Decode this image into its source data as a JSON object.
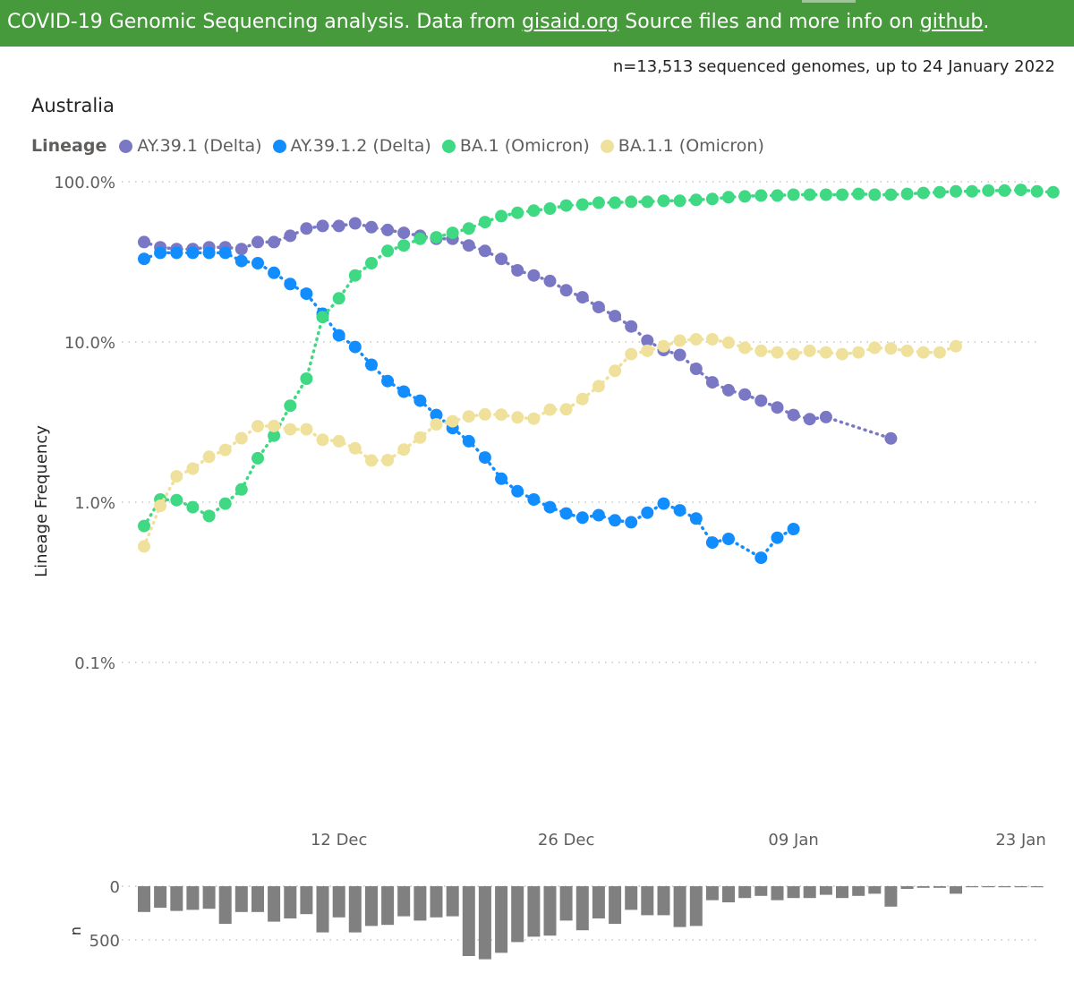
{
  "header": {
    "prefix": "COVID-19 Genomic Sequencing analysis. Data from ",
    "gisaid_link": "gisaid.org",
    "middle": " Source files and more info on ",
    "github_link": "github",
    "suffix": "."
  },
  "sample_count": "n=13,513 sequenced genomes, up to 24 January 2022",
  "region": "Australia",
  "legend_title": "Lineage",
  "chart_data": [
    {
      "type": "line",
      "yscale": "log",
      "ylabel": "Lineage Frequency",
      "xlabel": "",
      "y_ticks": [
        {
          "value": 1.0,
          "label": "100.0%"
        },
        {
          "value": 0.1,
          "label": "10.0%"
        },
        {
          "value": 0.01,
          "label": "1.0%"
        },
        {
          "value": 0.001,
          "label": "0.1%"
        }
      ],
      "x_ticks": [
        {
          "value": "2021-12-12",
          "label": "12 Dec"
        },
        {
          "value": "2021-12-26",
          "label": "26 Dec"
        },
        {
          "value": "2022-01-09",
          "label": "09 Jan"
        },
        {
          "value": "2022-01-23",
          "label": "23 Jan"
        }
      ],
      "grid": true,
      "legend_position": "top-left",
      "series": [
        {
          "name": "AY.39.1 (Delta)",
          "color": "#7a78c4",
          "points": [
            [
              "2021-11-30",
              0.42
            ],
            [
              "2021-12-01",
              0.39
            ],
            [
              "2021-12-02",
              0.38
            ],
            [
              "2021-12-03",
              0.38
            ],
            [
              "2021-12-04",
              0.39
            ],
            [
              "2021-12-05",
              0.39
            ],
            [
              "2021-12-06",
              0.38
            ],
            [
              "2021-12-07",
              0.42
            ],
            [
              "2021-12-08",
              0.42
            ],
            [
              "2021-12-09",
              0.46
            ],
            [
              "2021-12-10",
              0.51
            ],
            [
              "2021-12-11",
              0.53
            ],
            [
              "2021-12-12",
              0.53
            ],
            [
              "2021-12-13",
              0.55
            ],
            [
              "2021-12-14",
              0.52
            ],
            [
              "2021-12-15",
              0.5
            ],
            [
              "2021-12-16",
              0.48
            ],
            [
              "2021-12-17",
              0.46
            ],
            [
              "2021-12-18",
              0.44
            ],
            [
              "2021-12-19",
              0.44
            ],
            [
              "2021-12-20",
              0.4
            ],
            [
              "2021-12-21",
              0.37
            ],
            [
              "2021-12-22",
              0.33
            ],
            [
              "2021-12-23",
              0.28
            ],
            [
              "2021-12-24",
              0.26
            ],
            [
              "2021-12-25",
              0.24
            ],
            [
              "2021-12-26",
              0.21
            ],
            [
              "2021-12-27",
              0.19
            ],
            [
              "2021-12-28",
              0.165
            ],
            [
              "2021-12-29",
              0.145
            ],
            [
              "2021-12-30",
              0.125
            ],
            [
              "2021-12-31",
              0.102
            ],
            [
              "2022-01-01",
              0.089
            ],
            [
              "2022-01-02",
              0.083
            ],
            [
              "2022-01-03",
              0.068
            ],
            [
              "2022-01-04",
              0.056
            ],
            [
              "2022-01-05",
              0.05
            ],
            [
              "2022-01-06",
              0.047
            ],
            [
              "2022-01-07",
              0.043
            ],
            [
              "2022-01-08",
              0.039
            ],
            [
              "2022-01-09",
              0.035
            ],
            [
              "2022-01-10",
              0.033
            ],
            [
              "2022-01-11",
              0.034
            ],
            [
              "2022-01-15",
              0.025
            ]
          ]
        },
        {
          "name": "AY.39.1.2 (Delta)",
          "color": "#118dff",
          "points": [
            [
              "2021-11-30",
              0.33
            ],
            [
              "2021-12-01",
              0.36
            ],
            [
              "2021-12-02",
              0.36
            ],
            [
              "2021-12-03",
              0.36
            ],
            [
              "2021-12-04",
              0.36
            ],
            [
              "2021-12-05",
              0.36
            ],
            [
              "2021-12-06",
              0.32
            ],
            [
              "2021-12-07",
              0.31
            ],
            [
              "2021-12-08",
              0.27
            ],
            [
              "2021-12-09",
              0.23
            ],
            [
              "2021-12-10",
              0.2
            ],
            [
              "2021-12-11",
              0.15
            ],
            [
              "2021-12-12",
              0.11
            ],
            [
              "2021-12-13",
              0.093
            ],
            [
              "2021-12-14",
              0.072
            ],
            [
              "2021-12-15",
              0.057
            ],
            [
              "2021-12-16",
              0.049
            ],
            [
              "2021-12-17",
              0.043
            ],
            [
              "2021-12-18",
              0.035
            ],
            [
              "2021-12-19",
              0.029
            ],
            [
              "2021-12-20",
              0.024
            ],
            [
              "2021-12-21",
              0.019
            ],
            [
              "2021-12-22",
              0.014
            ],
            [
              "2021-12-23",
              0.0117
            ],
            [
              "2021-12-24",
              0.0104
            ],
            [
              "2021-12-25",
              0.0093
            ],
            [
              "2021-12-26",
              0.0085
            ],
            [
              "2021-12-27",
              0.008
            ],
            [
              "2021-12-28",
              0.0083
            ],
            [
              "2021-12-29",
              0.0077
            ],
            [
              "2021-12-30",
              0.0075
            ],
            [
              "2021-12-31",
              0.0086
            ],
            [
              "2022-01-01",
              0.0098
            ],
            [
              "2022-01-02",
              0.0089
            ],
            [
              "2022-01-03",
              0.0079
            ],
            [
              "2022-01-04",
              0.0056
            ],
            [
              "2022-01-05",
              0.0059
            ],
            [
              "2022-01-07",
              0.0045
            ],
            [
              "2022-01-08",
              0.006
            ],
            [
              "2022-01-09",
              0.0068
            ]
          ]
        },
        {
          "name": "BA.1 (Omicron)",
          "color": "#3fd883",
          "points": [
            [
              "2021-11-30",
              0.0071
            ],
            [
              "2021-12-01",
              0.0104
            ],
            [
              "2021-12-02",
              0.0103
            ],
            [
              "2021-12-03",
              0.0093
            ],
            [
              "2021-12-04",
              0.0082
            ],
            [
              "2021-12-05",
              0.0098
            ],
            [
              "2021-12-06",
              0.012
            ],
            [
              "2021-12-07",
              0.0188
            ],
            [
              "2021-12-08",
              0.026
            ],
            [
              "2021-12-09",
              0.04
            ],
            [
              "2021-12-10",
              0.059
            ],
            [
              "2021-12-11",
              0.143
            ],
            [
              "2021-12-12",
              0.187
            ],
            [
              "2021-12-13",
              0.26
            ],
            [
              "2021-12-14",
              0.31
            ],
            [
              "2021-12-15",
              0.37
            ],
            [
              "2021-12-16",
              0.4
            ],
            [
              "2021-12-17",
              0.44
            ],
            [
              "2021-12-18",
              0.45
            ],
            [
              "2021-12-19",
              0.48
            ],
            [
              "2021-12-20",
              0.51
            ],
            [
              "2021-12-21",
              0.56
            ],
            [
              "2021-12-22",
              0.61
            ],
            [
              "2021-12-23",
              0.64
            ],
            [
              "2021-12-24",
              0.66
            ],
            [
              "2021-12-25",
              0.68
            ],
            [
              "2021-12-26",
              0.71
            ],
            [
              "2021-12-27",
              0.72
            ],
            [
              "2021-12-28",
              0.74
            ],
            [
              "2021-12-29",
              0.74
            ],
            [
              "2021-12-30",
              0.75
            ],
            [
              "2021-12-31",
              0.75
            ],
            [
              "2022-01-01",
              0.76
            ],
            [
              "2022-01-02",
              0.76
            ],
            [
              "2022-01-03",
              0.77
            ],
            [
              "2022-01-04",
              0.78
            ],
            [
              "2022-01-05",
              0.8
            ],
            [
              "2022-01-06",
              0.81
            ],
            [
              "2022-01-07",
              0.82
            ],
            [
              "2022-01-08",
              0.82
            ],
            [
              "2022-01-09",
              0.83
            ],
            [
              "2022-01-10",
              0.83
            ],
            [
              "2022-01-11",
              0.83
            ],
            [
              "2022-01-12",
              0.83
            ],
            [
              "2022-01-13",
              0.84
            ],
            [
              "2022-01-14",
              0.83
            ],
            [
              "2022-01-15",
              0.83
            ],
            [
              "2022-01-16",
              0.84
            ],
            [
              "2022-01-17",
              0.85
            ],
            [
              "2022-01-18",
              0.86
            ],
            [
              "2022-01-19",
              0.87
            ],
            [
              "2022-01-20",
              0.87
            ],
            [
              "2022-01-21",
              0.88
            ],
            [
              "2022-01-22",
              0.88
            ],
            [
              "2022-01-23",
              0.89
            ],
            [
              "2022-01-24",
              0.87
            ],
            [
              "2022-01-25",
              0.86
            ]
          ]
        },
        {
          "name": "BA.1.1 (Omicron)",
          "color": "#efe19b",
          "points": [
            [
              "2021-11-30",
              0.0053
            ],
            [
              "2021-12-01",
              0.0095
            ],
            [
              "2021-12-02",
              0.0145
            ],
            [
              "2021-12-03",
              0.0162
            ],
            [
              "2021-12-04",
              0.0192
            ],
            [
              "2021-12-05",
              0.0212
            ],
            [
              "2021-12-06",
              0.0251
            ],
            [
              "2021-12-07",
              0.0298
            ],
            [
              "2021-12-08",
              0.0299
            ],
            [
              "2021-12-09",
              0.0285
            ],
            [
              "2021-12-10",
              0.0285
            ],
            [
              "2021-12-11",
              0.0245
            ],
            [
              "2021-12-12",
              0.024
            ],
            [
              "2021-12-13",
              0.0217
            ],
            [
              "2021-12-14",
              0.0182
            ],
            [
              "2021-12-15",
              0.0183
            ],
            [
              "2021-12-16",
              0.0213
            ],
            [
              "2021-12-17",
              0.0253
            ],
            [
              "2021-12-18",
              0.0306
            ],
            [
              "2021-12-19",
              0.032
            ],
            [
              "2021-12-20",
              0.0343
            ],
            [
              "2021-12-21",
              0.0353
            ],
            [
              "2021-12-22",
              0.0352
            ],
            [
              "2021-12-23",
              0.0338
            ],
            [
              "2021-12-24",
              0.0332
            ],
            [
              "2021-12-25",
              0.0378
            ],
            [
              "2021-12-26",
              0.038
            ],
            [
              "2021-12-27",
              0.044
            ],
            [
              "2021-12-28",
              0.053
            ],
            [
              "2021-12-29",
              0.066
            ],
            [
              "2021-12-30",
              0.084
            ],
            [
              "2021-12-31",
              0.088
            ],
            [
              "2022-01-01",
              0.094
            ],
            [
              "2022-01-02",
              0.102
            ],
            [
              "2022-01-03",
              0.104
            ],
            [
              "2022-01-04",
              0.104
            ],
            [
              "2022-01-05",
              0.099
            ],
            [
              "2022-01-06",
              0.092
            ],
            [
              "2022-01-07",
              0.088
            ],
            [
              "2022-01-08",
              0.086
            ],
            [
              "2022-01-09",
              0.084
            ],
            [
              "2022-01-10",
              0.088
            ],
            [
              "2022-01-11",
              0.086
            ],
            [
              "2022-01-12",
              0.084
            ],
            [
              "2022-01-13",
              0.086
            ],
            [
              "2022-01-14",
              0.092
            ],
            [
              "2022-01-15",
              0.091
            ],
            [
              "2022-01-16",
              0.088
            ],
            [
              "2022-01-17",
              0.086
            ],
            [
              "2022-01-18",
              0.086
            ],
            [
              "2022-01-19",
              0.094
            ]
          ]
        }
      ]
    },
    {
      "type": "bar",
      "ylabel": "n",
      "color": "#808080",
      "y_ticks": [
        {
          "value": 0,
          "label": "0"
        },
        {
          "value": 500,
          "label": "500"
        }
      ],
      "grid": true,
      "x": [
        "2021-11-30",
        "2021-12-01",
        "2021-12-02",
        "2021-12-03",
        "2021-12-04",
        "2021-12-05",
        "2021-12-06",
        "2021-12-07",
        "2021-12-08",
        "2021-12-09",
        "2021-12-10",
        "2021-12-11",
        "2021-12-12",
        "2021-12-13",
        "2021-12-14",
        "2021-12-15",
        "2021-12-16",
        "2021-12-17",
        "2021-12-18",
        "2021-12-19",
        "2021-12-20",
        "2021-12-21",
        "2021-12-22",
        "2021-12-23",
        "2021-12-24",
        "2021-12-25",
        "2021-12-26",
        "2021-12-27",
        "2021-12-28",
        "2021-12-29",
        "2021-12-30",
        "2021-12-31",
        "2022-01-01",
        "2022-01-02",
        "2022-01-03",
        "2022-01-04",
        "2022-01-05",
        "2022-01-06",
        "2022-01-07",
        "2022-01-08",
        "2022-01-09",
        "2022-01-10",
        "2022-01-11",
        "2022-01-12",
        "2022-01-13",
        "2022-01-14",
        "2022-01-15",
        "2022-01-16",
        "2022-01-17",
        "2022-01-18",
        "2022-01-19",
        "2022-01-20",
        "2022-01-21",
        "2022-01-22",
        "2022-01-23",
        "2022-01-24"
      ],
      "values": [
        240,
        200,
        230,
        220,
        210,
        350,
        240,
        240,
        330,
        300,
        260,
        430,
        290,
        430,
        370,
        360,
        280,
        320,
        290,
        280,
        650,
        680,
        620,
        520,
        470,
        460,
        320,
        410,
        300,
        350,
        220,
        270,
        270,
        380,
        370,
        130,
        150,
        110,
        90,
        130,
        110,
        110,
        80,
        110,
        90,
        70,
        190,
        25,
        15,
        15,
        70,
        10,
        10,
        10,
        10,
        10
      ]
    }
  ]
}
